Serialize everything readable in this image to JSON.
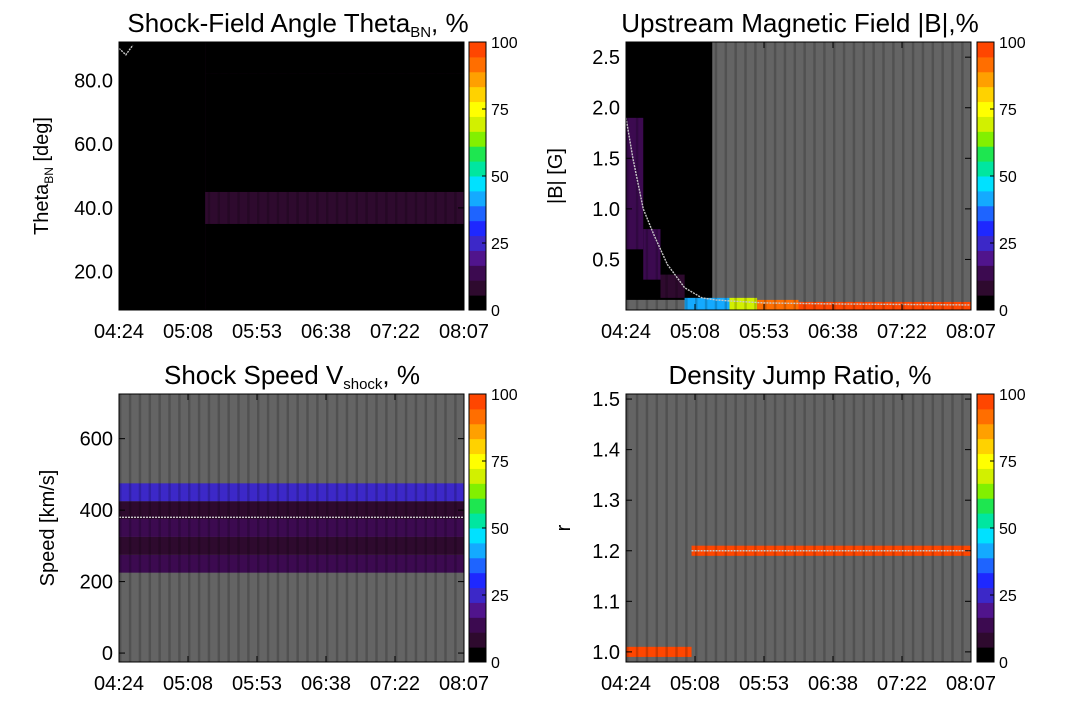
{
  "chart_data": [
    {
      "type": "heatmap",
      "title": "Shock-Field Angle Theta",
      "title_sub": "BN",
      "title_suffix": ", %",
      "ylabel": "Theta",
      "ylabel_sub": "BN",
      "ylabel_suffix": " [deg]",
      "x_ticks": [
        "04:24",
        "05:08",
        "05:53",
        "06:38",
        "07:22",
        "08:07"
      ],
      "y_ticks": [
        {
          "value": 20,
          "label": "20.0"
        },
        {
          "value": 40,
          "label": "40.0"
        },
        {
          "value": 60,
          "label": "60.0"
        },
        {
          "value": 80,
          "label": "80.0"
        }
      ],
      "ylim": [
        8,
        92
      ],
      "colorbar": {
        "ticks": [
          "0",
          "25",
          "50",
          "75",
          "100"
        ],
        "range": [
          0,
          100
        ]
      },
      "background": "#2e0a2e",
      "bands": [
        {
          "t_from": 0.0,
          "t_to": 0.25,
          "y_from": 8,
          "y_to": 92,
          "percent": 4
        },
        {
          "t_from": 0.25,
          "t_to": 1.0,
          "y_from": 8,
          "y_to": 35,
          "percent": 3
        },
        {
          "t_from": 0.25,
          "t_to": 1.0,
          "y_from": 35,
          "y_to": 45,
          "percent": 6
        },
        {
          "t_from": 0.25,
          "t_to": 1.0,
          "y_from": 45,
          "y_to": 82,
          "percent": 1
        },
        {
          "t_from": 0.25,
          "t_to": 1.0,
          "y_from": 82,
          "y_to": 92,
          "percent": 0
        }
      ],
      "median_line": {
        "t": [
          0.0,
          0.02,
          0.04
        ],
        "y": [
          90,
          88,
          91
        ]
      }
    },
    {
      "type": "heatmap",
      "title": "Upstream Magnetic Field |B|,%",
      "ylabel": "|B| [G]",
      "x_ticks": [
        "04:24",
        "05:08",
        "05:53",
        "06:38",
        "07:22",
        "08:07"
      ],
      "y_ticks": [
        {
          "value": 0.5,
          "label": "0.5"
        },
        {
          "value": 1.0,
          "label": "1.0"
        },
        {
          "value": 1.5,
          "label": "1.5"
        },
        {
          "value": 2.0,
          "label": "2.0"
        },
        {
          "value": 2.5,
          "label": "2.5"
        }
      ],
      "ylim": [
        0.0,
        2.65
      ],
      "colorbar": {
        "ticks": [
          "0",
          "25",
          "50",
          "75",
          "100"
        ],
        "range": [
          0,
          100
        ]
      },
      "background": "#646464",
      "bands": [
        {
          "t_from": 0.0,
          "t_to": 0.25,
          "y_from": 0.1,
          "y_to": 2.65,
          "percent": 3
        },
        {
          "t_from": 0.0,
          "t_to": 0.05,
          "y_from": 0.6,
          "y_to": 1.9,
          "percent": 12
        },
        {
          "t_from": 0.05,
          "t_to": 0.1,
          "y_from": 0.3,
          "y_to": 0.8,
          "percent": 15
        },
        {
          "t_from": 0.1,
          "t_to": 0.17,
          "y_from": 0.12,
          "y_to": 0.35,
          "percent": 10
        },
        {
          "t_from": 0.17,
          "t_to": 0.3,
          "y_from": 0.0,
          "y_to": 0.12,
          "percent": 40
        },
        {
          "t_from": 0.3,
          "t_to": 0.38,
          "y_from": 0.0,
          "y_to": 0.12,
          "percent": 70
        },
        {
          "t_from": 0.38,
          "t_to": 0.5,
          "y_from": 0.0,
          "y_to": 0.1,
          "percent": 90
        },
        {
          "t_from": 0.5,
          "t_to": 1.0,
          "y_from": 0.0,
          "y_to": 0.08,
          "percent": 100
        }
      ],
      "median_line": {
        "t": [
          0.0,
          0.02,
          0.05,
          0.08,
          0.12,
          0.17,
          0.22,
          0.26,
          0.3,
          0.4,
          0.6,
          1.0
        ],
        "y": [
          1.9,
          1.5,
          1.0,
          0.75,
          0.45,
          0.22,
          0.12,
          0.1,
          0.09,
          0.07,
          0.06,
          0.05
        ]
      }
    },
    {
      "type": "heatmap",
      "title": "Shock Speed V",
      "title_sub": "shock",
      "title_suffix": ", %",
      "ylabel": "Speed [km/s]",
      "x_ticks": [
        "04:24",
        "05:08",
        "05:53",
        "06:38",
        "07:22",
        "08:07"
      ],
      "y_ticks": [
        {
          "value": 0,
          "label": "0"
        },
        {
          "value": 200,
          "label": "200"
        },
        {
          "value": 400,
          "label": "400"
        },
        {
          "value": 600,
          "label": "600"
        }
      ],
      "ylim": [
        -25,
        725
      ],
      "colorbar": {
        "ticks": [
          "0",
          "25",
          "50",
          "75",
          "100"
        ],
        "range": [
          0,
          100
        ]
      },
      "background": "#646464",
      "bands": [
        {
          "t_from": 0.0,
          "t_to": 1.0,
          "y_from": 225,
          "y_to": 275,
          "percent": 13
        },
        {
          "t_from": 0.0,
          "t_to": 1.0,
          "y_from": 275,
          "y_to": 325,
          "percent": 11
        },
        {
          "t_from": 0.0,
          "t_to": 1.0,
          "y_from": 325,
          "y_to": 375,
          "percent": 13
        },
        {
          "t_from": 0.0,
          "t_to": 1.0,
          "y_from": 375,
          "y_to": 425,
          "percent": 11
        },
        {
          "t_from": 0.0,
          "t_to": 1.0,
          "y_from": 425,
          "y_to": 475,
          "percent": 24
        }
      ],
      "median_line": {
        "t": [
          0.0,
          1.0
        ],
        "y": [
          380,
          380
        ]
      }
    },
    {
      "type": "heatmap",
      "title": "Density Jump Ratio, %",
      "ylabel": "r",
      "x_ticks": [
        "04:24",
        "05:08",
        "05:53",
        "06:38",
        "07:22",
        "08:07"
      ],
      "y_ticks": [
        {
          "value": 1.0,
          "label": "1.0"
        },
        {
          "value": 1.1,
          "label": "1.1"
        },
        {
          "value": 1.2,
          "label": "1.2"
        },
        {
          "value": 1.3,
          "label": "1.3"
        },
        {
          "value": 1.4,
          "label": "1.4"
        },
        {
          "value": 1.5,
          "label": "1.5"
        }
      ],
      "ylim": [
        0.98,
        1.51
      ],
      "colorbar": {
        "ticks": [
          "0",
          "25",
          "50",
          "75",
          "100"
        ],
        "range": [
          0,
          100
        ]
      },
      "background": "#646464",
      "bands": [
        {
          "t_from": 0.0,
          "t_to": 0.19,
          "y_from": 0.99,
          "y_to": 1.01,
          "percent": 100
        },
        {
          "t_from": 0.19,
          "t_to": 1.0,
          "y_from": 1.19,
          "y_to": 1.21,
          "percent": 100
        }
      ],
      "median_line": {
        "t": [
          0.19,
          1.0
        ],
        "y": [
          1.2,
          1.2
        ]
      }
    }
  ],
  "colors": {
    "missing": "#646464",
    "median_line": "#c8c8c8",
    "colorbar_levels": [
      "#000000",
      "#2e0a2e",
      "#3c0a50",
      "#50148c",
      "#3c28c8",
      "#1e28ff",
      "#1e64ff",
      "#14aaff",
      "#00e1ff",
      "#00e6a0",
      "#1ee650",
      "#82f000",
      "#d2f000",
      "#ffff00",
      "#ffd200",
      "#ffa000",
      "#ff6e00",
      "#ff4600"
    ]
  }
}
